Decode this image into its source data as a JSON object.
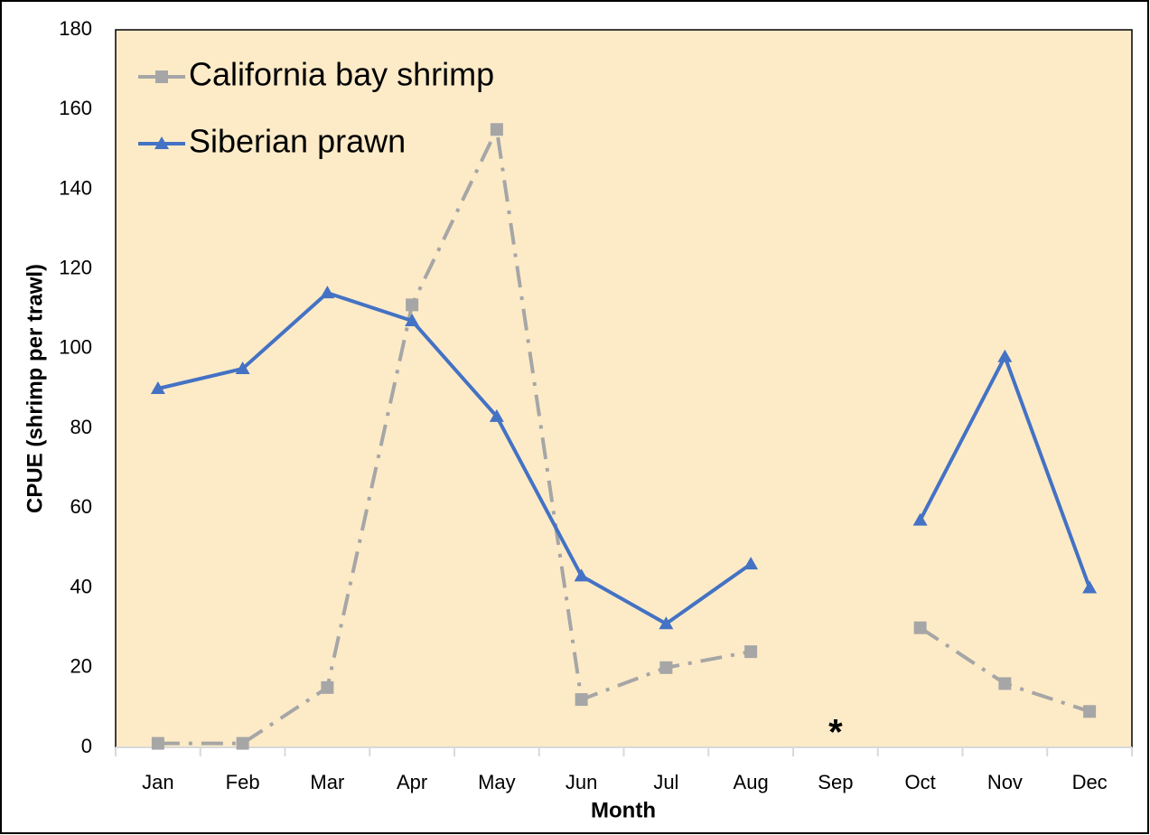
{
  "chart_data": {
    "type": "line",
    "x_label": "Month",
    "y_label": "CPUE (shrimp per trawl)",
    "categories": [
      "Jan",
      "Feb",
      "Mar",
      "Apr",
      "May",
      "Jun",
      "Jul",
      "Aug",
      "Sep",
      "Oct",
      "Nov",
      "Dec"
    ],
    "series": [
      {
        "name": "California bay shrimp",
        "color": "#a6a6a6",
        "line_style": "dashdot",
        "marker": "square",
        "values": [
          1,
          1,
          15,
          111,
          155,
          12,
          20,
          24,
          null,
          30,
          16,
          9
        ]
      },
      {
        "name": "Siberian prawn",
        "color": "#4472c4",
        "line_style": "solid",
        "marker": "triangle",
        "values": [
          90,
          95,
          114,
          107,
          83,
          43,
          31,
          46,
          null,
          57,
          98,
          40
        ]
      }
    ],
    "annotation": "*",
    "ylim": [
      0,
      180
    ],
    "yticks": [
      0,
      20,
      40,
      60,
      80,
      100,
      120,
      140,
      160,
      180
    ],
    "background": "#fdebc8",
    "legend": "upper left",
    "grid": false
  }
}
